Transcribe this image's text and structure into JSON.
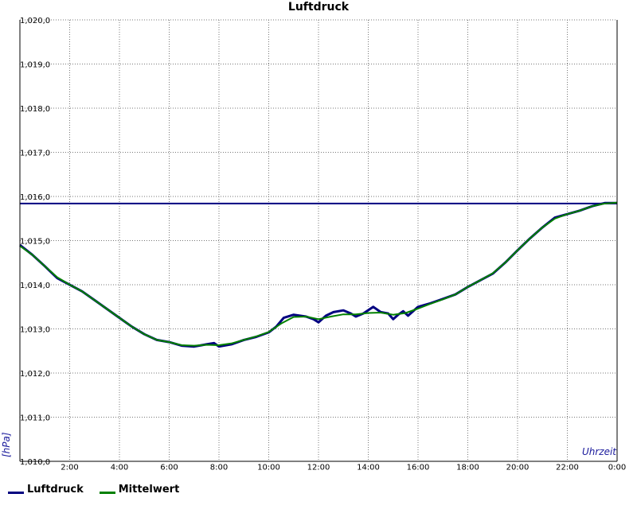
{
  "chart_data": {
    "type": "line",
    "title": "Luftdruck",
    "xlabel": "Uhrzeit",
    "ylabel": "[hPa]",
    "xlim": [
      0,
      24
    ],
    "ylim": [
      1010.0,
      1020.0
    ],
    "x_ticks": [
      "2:00",
      "4:00",
      "6:00",
      "8:00",
      "10:00",
      "12:00",
      "14:00",
      "16:00",
      "18:00",
      "20:00",
      "22:00",
      "0:00"
    ],
    "y_ticks": [
      "1,010,0",
      "1,011,0",
      "1,012,0",
      "1,013,0",
      "1,014,0",
      "1,015,0",
      "1,016,0",
      "1,017,0",
      "1,018,0",
      "1,019,0",
      "1,020,0"
    ],
    "grid": true,
    "legend_position": "bottom-left",
    "reference_line": {
      "y": 1015.84,
      "color": "#000080"
    },
    "series": [
      {
        "name": "Luftdruck",
        "color": "#000080",
        "points": [
          [
            0,
            1014.9
          ],
          [
            0.5,
            1014.68
          ],
          [
            1,
            1014.42
          ],
          [
            1.5,
            1014.15
          ],
          [
            2,
            1014.0
          ],
          [
            2.5,
            1013.85
          ],
          [
            3,
            1013.65
          ],
          [
            3.5,
            1013.45
          ],
          [
            4,
            1013.25
          ],
          [
            4.5,
            1013.05
          ],
          [
            5,
            1012.88
          ],
          [
            5.5,
            1012.75
          ],
          [
            6,
            1012.7
          ],
          [
            6.5,
            1012.62
          ],
          [
            7,
            1012.6
          ],
          [
            7.5,
            1012.65
          ],
          [
            7.8,
            1012.68
          ],
          [
            8,
            1012.6
          ],
          [
            8.5,
            1012.65
          ],
          [
            9,
            1012.75
          ],
          [
            9.5,
            1012.82
          ],
          [
            10,
            1012.92
          ],
          [
            10.3,
            1013.05
          ],
          [
            10.6,
            1013.25
          ],
          [
            11,
            1013.32
          ],
          [
            11.5,
            1013.28
          ],
          [
            11.8,
            1013.22
          ],
          [
            12,
            1013.15
          ],
          [
            12.3,
            1013.3
          ],
          [
            12.6,
            1013.38
          ],
          [
            13,
            1013.42
          ],
          [
            13.3,
            1013.35
          ],
          [
            13.5,
            1013.28
          ],
          [
            13.8,
            1013.35
          ],
          [
            14.2,
            1013.5
          ],
          [
            14.5,
            1013.38
          ],
          [
            14.8,
            1013.35
          ],
          [
            15,
            1013.22
          ],
          [
            15.2,
            1013.32
          ],
          [
            15.4,
            1013.4
          ],
          [
            15.6,
            1013.3
          ],
          [
            16,
            1013.5
          ],
          [
            16.5,
            1013.58
          ],
          [
            17,
            1013.68
          ],
          [
            17.5,
            1013.78
          ],
          [
            18,
            1013.95
          ],
          [
            18.5,
            1014.1
          ],
          [
            19,
            1014.25
          ],
          [
            19.5,
            1014.5
          ],
          [
            20,
            1014.78
          ],
          [
            20.5,
            1015.05
          ],
          [
            21,
            1015.3
          ],
          [
            21.5,
            1015.52
          ],
          [
            22,
            1015.6
          ],
          [
            22.5,
            1015.68
          ],
          [
            23,
            1015.78
          ],
          [
            23.5,
            1015.85
          ],
          [
            24,
            1015.85
          ]
        ]
      },
      {
        "name": "Mittelwert",
        "color": "#008000",
        "points": [
          [
            0,
            1014.88
          ],
          [
            0.5,
            1014.68
          ],
          [
            1,
            1014.42
          ],
          [
            1.5,
            1014.17
          ],
          [
            2,
            1014.0
          ],
          [
            2.5,
            1013.85
          ],
          [
            3,
            1013.65
          ],
          [
            3.5,
            1013.45
          ],
          [
            4,
            1013.25
          ],
          [
            4.5,
            1013.05
          ],
          [
            5,
            1012.88
          ],
          [
            5.5,
            1012.75
          ],
          [
            6,
            1012.7
          ],
          [
            6.5,
            1012.63
          ],
          [
            7,
            1012.62
          ],
          [
            7.5,
            1012.64
          ],
          [
            8,
            1012.63
          ],
          [
            8.5,
            1012.67
          ],
          [
            9,
            1012.75
          ],
          [
            9.5,
            1012.83
          ],
          [
            10,
            1012.93
          ],
          [
            10.5,
            1013.12
          ],
          [
            11,
            1013.27
          ],
          [
            11.5,
            1013.28
          ],
          [
            12,
            1013.22
          ],
          [
            12.5,
            1013.28
          ],
          [
            13,
            1013.33
          ],
          [
            13.5,
            1013.33
          ],
          [
            14,
            1013.36
          ],
          [
            14.5,
            1013.37
          ],
          [
            15,
            1013.32
          ],
          [
            15.5,
            1013.36
          ],
          [
            16,
            1013.46
          ],
          [
            16.5,
            1013.57
          ],
          [
            17,
            1013.67
          ],
          [
            17.5,
            1013.78
          ],
          [
            18,
            1013.95
          ],
          [
            18.5,
            1014.1
          ],
          [
            19,
            1014.26
          ],
          [
            19.5,
            1014.5
          ],
          [
            20,
            1014.78
          ],
          [
            20.5,
            1015.05
          ],
          [
            21,
            1015.3
          ],
          [
            21.5,
            1015.5
          ],
          [
            22,
            1015.6
          ],
          [
            22.5,
            1015.68
          ],
          [
            23,
            1015.78
          ],
          [
            23.5,
            1015.84
          ],
          [
            24,
            1015.86
          ]
        ]
      }
    ]
  }
}
